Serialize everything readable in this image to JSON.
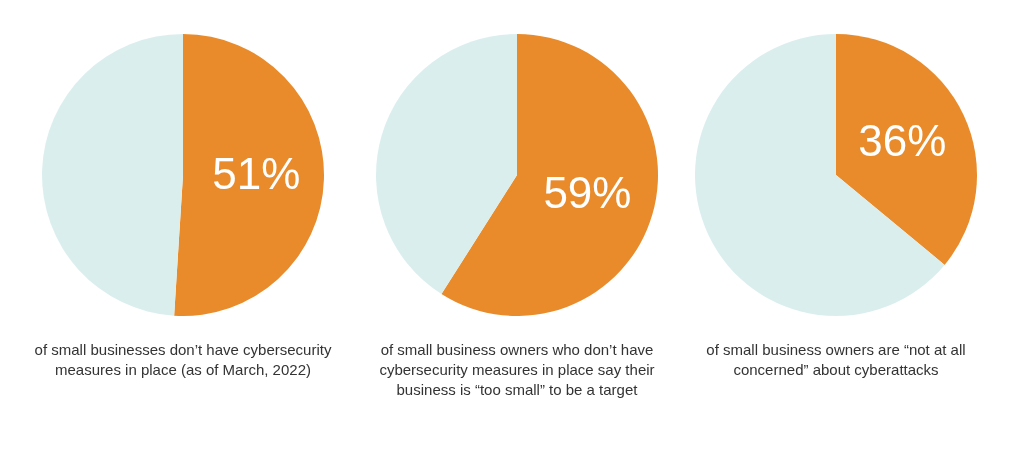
{
  "chart_data": [
    {
      "type": "pie",
      "categories": [
        null,
        null
      ],
      "values": [
        51,
        49
      ],
      "colors": [
        "#e98b2a",
        "#dbeeee"
      ],
      "value_labels": [
        "51%",
        null
      ],
      "annotations": [
        "of small businesses don’t have cybersecurity measures in place (as of March, 2022)"
      ]
    },
    {
      "type": "pie",
      "categories": [
        null,
        null
      ],
      "values": [
        59,
        41
      ],
      "colors": [
        "#e98b2a",
        "#dbeeee"
      ],
      "value_labels": [
        "59%",
        null
      ],
      "annotations": [
        "of small business owners who don’t have cybersecurity measures in place say their business is “too small” to be a target"
      ]
    },
    {
      "type": "pie",
      "categories": [
        null,
        null
      ],
      "values": [
        36,
        64
      ],
      "colors": [
        "#e98b2a",
        "#dbeeee"
      ],
      "value_labels": [
        "36%",
        null
      ],
      "annotations": [
        "of small business owners are “not at all concerned” about cyberattacks"
      ]
    }
  ]
}
